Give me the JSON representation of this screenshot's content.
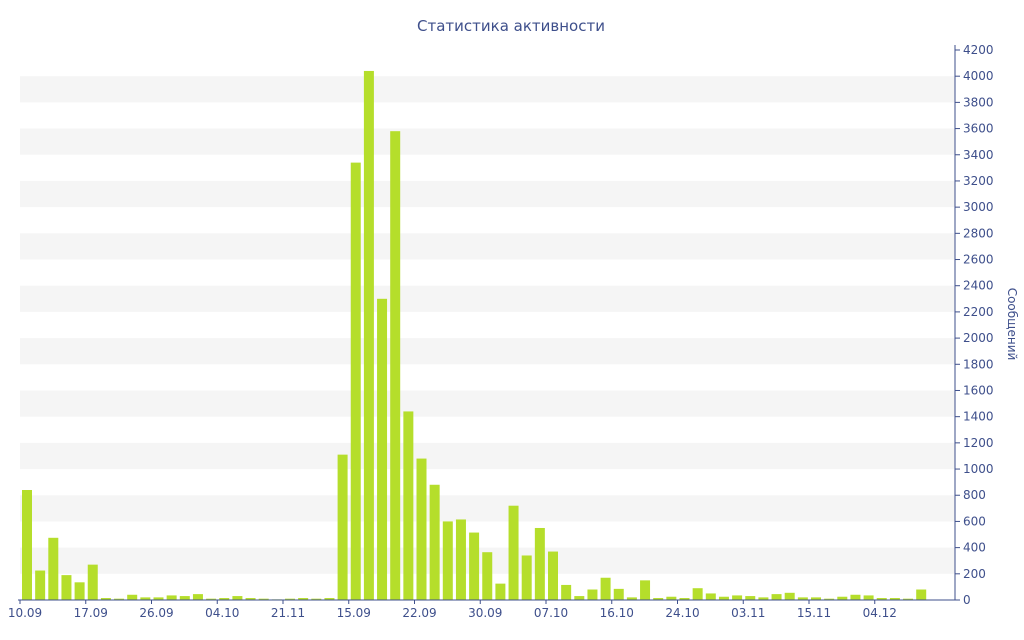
{
  "chart_data": {
    "type": "bar",
    "title": "Статистика активности",
    "ylabel": "Сообщений",
    "xlabel": "",
    "ylim": [
      0,
      4200
    ],
    "y_ticks": [
      0,
      200,
      400,
      600,
      800,
      1000,
      1200,
      1400,
      1600,
      1800,
      2000,
      2200,
      2400,
      2600,
      2800,
      3000,
      3200,
      3400,
      3600,
      3800,
      4000,
      4200
    ],
    "x_tick_labels": [
      {
        "label": "10.09",
        "index": 0
      },
      {
        "label": "17.09",
        "index": 5
      },
      {
        "label": "26.09",
        "index": 10
      },
      {
        "label": "04.10",
        "index": 15
      },
      {
        "label": "21.11",
        "index": 20
      },
      {
        "label": "15.09",
        "index": 25
      },
      {
        "label": "22.09",
        "index": 30
      },
      {
        "label": "30.09",
        "index": 35
      },
      {
        "label": "07.10",
        "index": 40
      },
      {
        "label": "16.10",
        "index": 45
      },
      {
        "label": "24.10",
        "index": 50
      },
      {
        "label": "03.11",
        "index": 55
      },
      {
        "label": "15.11",
        "index": 60
      },
      {
        "label": "04.12",
        "index": 65
      }
    ],
    "values": [
      840,
      225,
      475,
      190,
      135,
      270,
      15,
      10,
      40,
      20,
      20,
      35,
      30,
      45,
      10,
      15,
      30,
      15,
      10,
      5,
      10,
      15,
      10,
      15,
      1110,
      3340,
      4040,
      2300,
      3580,
      1440,
      1080,
      880,
      600,
      615,
      515,
      365,
      125,
      720,
      340,
      550,
      370,
      115,
      30,
      80,
      170,
      85,
      20,
      150,
      15,
      25,
      15,
      90,
      50,
      25,
      35,
      30,
      20,
      45,
      55,
      20,
      20,
      10,
      25,
      40,
      35,
      15,
      15,
      10,
      80
    ],
    "grid": "horizontal alternating bands",
    "bar_color": "#b5de2b",
    "band_color": "#f5f5f5",
    "text_color": "#3e4f8b",
    "axis_side": "right"
  }
}
